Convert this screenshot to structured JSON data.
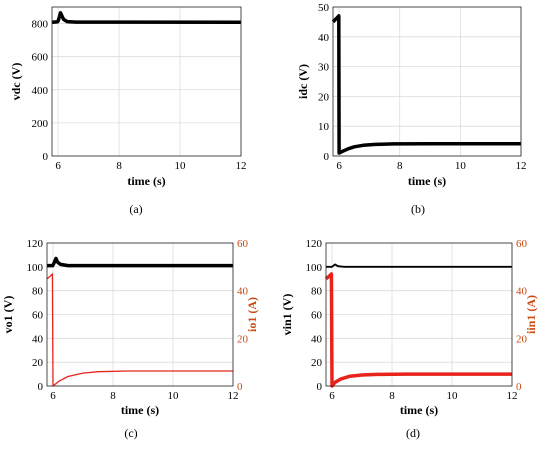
{
  "chart_data": [
    {
      "id": "a",
      "type": "line",
      "caption": "(a)",
      "xlabel": "time (s)",
      "ylabel": "vdc (V)",
      "xlim": [
        5.8,
        12
      ],
      "ylim": [
        0,
        900
      ],
      "xticks": [
        6,
        8,
        10,
        12
      ],
      "yticks": [
        0,
        200,
        400,
        600,
        800
      ],
      "grid": true,
      "series": [
        {
          "color": "#000000",
          "width": 3.5,
          "points": [
            [
              5.8,
              808
            ],
            [
              5.97,
              810
            ],
            [
              6.0,
              815
            ],
            [
              6.05,
              845
            ],
            [
              6.08,
              865
            ],
            [
              6.12,
              848
            ],
            [
              6.18,
              825
            ],
            [
              6.3,
              812
            ],
            [
              6.6,
              809
            ],
            [
              12,
              808
            ]
          ]
        }
      ]
    },
    {
      "id": "b",
      "type": "line",
      "caption": "(b)",
      "xlabel": "time (s)",
      "ylabel": "idc (V)",
      "xlim": [
        5.8,
        12
      ],
      "ylim": [
        0,
        50
      ],
      "xticks": [
        6,
        8,
        10,
        12
      ],
      "yticks": [
        0,
        10,
        20,
        30,
        40,
        50
      ],
      "grid": true,
      "series": [
        {
          "color": "#000000",
          "width": 3.5,
          "points": [
            [
              5.8,
              45
            ],
            [
              5.9,
              46
            ],
            [
              5.99,
              47
            ],
            [
              6.0,
              1
            ],
            [
              6.1,
              1.5
            ],
            [
              6.3,
              2.4
            ],
            [
              6.5,
              3.1
            ],
            [
              6.8,
              3.6
            ],
            [
              7.2,
              3.9
            ],
            [
              7.8,
              4.05
            ],
            [
              9,
              4.1
            ],
            [
              12,
              4.1
            ]
          ]
        }
      ]
    },
    {
      "id": "c",
      "type": "line",
      "caption": "(c)",
      "xlabel": "time (s)",
      "ylabel": "vo1 (V)",
      "ylabel_right": "io1 (A)",
      "xlim": [
        5.8,
        12
      ],
      "ylim": [
        0,
        120
      ],
      "ylim_right": [
        0,
        60
      ],
      "xticks": [
        6,
        8,
        10,
        12
      ],
      "yticks": [
        0,
        20,
        40,
        60,
        80,
        100,
        120
      ],
      "yticks_right": [
        0,
        20,
        40,
        60
      ],
      "grid": true,
      "series": [
        {
          "axis": "left",
          "color": "#000000",
          "width": 3.5,
          "points": [
            [
              5.8,
              101
            ],
            [
              5.99,
              101
            ],
            [
              6.03,
              103
            ],
            [
              6.1,
              107
            ],
            [
              6.15,
              104
            ],
            [
              6.25,
              102
            ],
            [
              6.5,
              101
            ],
            [
              12,
              101
            ]
          ]
        },
        {
          "axis": "right",
          "color": "#e8231c",
          "width": 1.3,
          "points": [
            [
              5.8,
              45
            ],
            [
              5.9,
              46
            ],
            [
              5.98,
              47
            ],
            [
              6.0,
              0
            ],
            [
              6.2,
              2
            ],
            [
              6.5,
              4
            ],
            [
              7,
              5.4
            ],
            [
              7.5,
              6
            ],
            [
              8.5,
              6.3
            ],
            [
              12,
              6.3
            ]
          ]
        }
      ]
    },
    {
      "id": "d",
      "type": "line",
      "caption": "(d)",
      "xlabel": "time (s)",
      "ylabel": "vin1 (V)",
      "ylabel_right": "iin1 (A)",
      "xlim": [
        5.8,
        12
      ],
      "ylim": [
        0,
        120
      ],
      "ylim_right": [
        0,
        60
      ],
      "xticks": [
        6,
        8,
        10,
        12
      ],
      "yticks": [
        0,
        20,
        40,
        60,
        80,
        100,
        120
      ],
      "yticks_right": [
        0,
        20,
        40,
        60
      ],
      "grid": true,
      "series": [
        {
          "axis": "left",
          "color": "#000000",
          "width": 1.8,
          "points": [
            [
              5.8,
              100
            ],
            [
              6.0,
              100
            ],
            [
              6.1,
              102
            ],
            [
              6.2,
              100.5
            ],
            [
              6.4,
              100
            ],
            [
              12,
              100
            ]
          ]
        },
        {
          "axis": "right",
          "color": "#e8231c",
          "width": 3.5,
          "points": [
            [
              5.8,
              45
            ],
            [
              5.9,
              46
            ],
            [
              5.98,
              47
            ],
            [
              6.0,
              0
            ],
            [
              6.1,
              1.5
            ],
            [
              6.3,
              3
            ],
            [
              6.6,
              4.1
            ],
            [
              7,
              4.6
            ],
            [
              7.5,
              4.85
            ],
            [
              8.5,
              5
            ],
            [
              12,
              5
            ]
          ]
        }
      ]
    }
  ]
}
